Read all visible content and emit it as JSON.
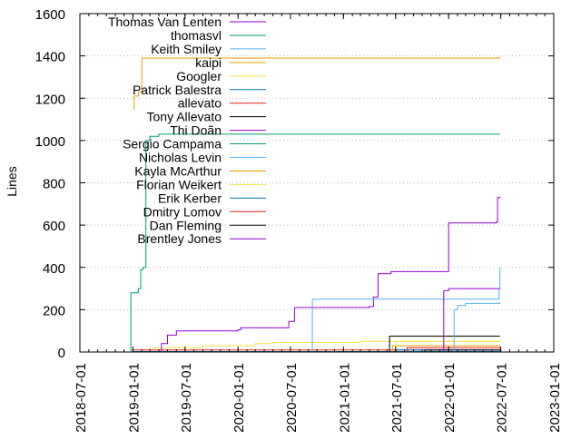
{
  "chart_data": {
    "type": "line",
    "title": "",
    "xlabel": "",
    "ylabel": "Lines",
    "xlim": [
      "2018-07-01",
      "2023-01-01"
    ],
    "ylim": [
      0,
      1600
    ],
    "y_ticks": [
      0,
      200,
      400,
      600,
      800,
      1000,
      1200,
      1400,
      1600
    ],
    "x_ticks": [
      "2018-07-01",
      "2019-01-01",
      "2019-07-01",
      "2020-01-01",
      "2020-07-01",
      "2021-01-01",
      "2021-07-01",
      "2022-01-01",
      "2022-07-01",
      "2023-01-01"
    ],
    "grid": "horizontal dotted lines at major y ticks",
    "legend_position": "top-left inside plot",
    "series": [
      {
        "name": "Thomas Van Lenten",
        "color": "#9400d3",
        "step": true,
        "points": []
      },
      {
        "name": "thomasvl",
        "color": "#009e73",
        "step": true,
        "points": [
          [
            "2018-12-22",
            0
          ],
          [
            "2018-12-25",
            280
          ],
          [
            "2019-01-10",
            280
          ],
          [
            "2019-01-20",
            300
          ],
          [
            "2019-01-28",
            390
          ],
          [
            "2019-02-05",
            400
          ],
          [
            "2019-02-15",
            1000
          ],
          [
            "2019-03-01",
            1020
          ],
          [
            "2019-04-01",
            1030
          ],
          [
            "2022-06-28",
            1030
          ]
        ]
      },
      {
        "name": "Keith Smiley",
        "color": "#56b4e9",
        "step": true,
        "points": []
      },
      {
        "name": "kaipi",
        "color": "#e69f00",
        "step": true,
        "points": [
          [
            "2019-01-02",
            1150
          ],
          [
            "2019-01-05",
            1210
          ],
          [
            "2019-01-20",
            1230
          ],
          [
            "2019-02-01",
            1390
          ],
          [
            "2022-06-28",
            1395
          ]
        ]
      },
      {
        "name": "Googler",
        "color": "#f0e442",
        "step": true,
        "points": [
          [
            "2019-01-01",
            0
          ],
          [
            "2019-03-01",
            20
          ],
          [
            "2019-09-01",
            30
          ],
          [
            "2020-03-01",
            40
          ],
          [
            "2020-05-01",
            45
          ],
          [
            "2021-03-01",
            50
          ],
          [
            "2022-06-28",
            55
          ]
        ]
      },
      {
        "name": "Patrick Balestra",
        "color": "#0072b2",
        "step": true,
        "points": [
          [
            "2019-01-01",
            2
          ],
          [
            "2022-06-28",
            2
          ]
        ]
      },
      {
        "name": "allevato",
        "color": "#e51e10",
        "step": true,
        "points": [
          [
            "2019-01-01",
            10
          ],
          [
            "2022-06-28",
            12
          ]
        ]
      },
      {
        "name": "Tony Allevato",
        "color": "#000000",
        "step": true,
        "points": [
          [
            "2021-06-01",
            0
          ],
          [
            "2021-06-10",
            75
          ],
          [
            "2022-06-28",
            75
          ]
        ]
      },
      {
        "name": "Thi Doãn",
        "color": "#9400d3",
        "step": true,
        "points": [
          [
            "2019-04-01",
            0
          ],
          [
            "2019-04-10",
            40
          ],
          [
            "2019-05-01",
            80
          ],
          [
            "2019-06-01",
            100
          ],
          [
            "2020-01-01",
            105
          ],
          [
            "2020-01-10",
            115
          ],
          [
            "2020-06-25",
            145
          ],
          [
            "2020-07-15",
            210
          ],
          [
            "2021-04-01",
            215
          ],
          [
            "2021-04-15",
            260
          ],
          [
            "2021-05-01",
            370
          ],
          [
            "2021-06-15",
            380
          ],
          [
            "2022-01-01",
            610
          ],
          [
            "2022-06-15",
            615
          ],
          [
            "2022-06-20",
            730
          ],
          [
            "2022-06-28",
            735
          ]
        ]
      },
      {
        "name": "Sergio Campama",
        "color": "#009e73",
        "step": true,
        "points": [
          [
            "2019-01-01",
            0
          ],
          [
            "2022-06-28",
            0
          ]
        ]
      },
      {
        "name": "Nicholas Levin",
        "color": "#56b4e9",
        "step": true,
        "points": [
          [
            "2020-09-01",
            0
          ],
          [
            "2020-09-15",
            250
          ],
          [
            "2022-06-20",
            250
          ],
          [
            "2022-06-25",
            300
          ],
          [
            "2022-06-28",
            400
          ]
        ]
      },
      {
        "name": "Kayla McArthur",
        "color": "#e69f00",
        "step": true,
        "points": [
          [
            "2021-06-01",
            0
          ],
          [
            "2021-06-20",
            30
          ],
          [
            "2022-06-28",
            30
          ]
        ]
      },
      {
        "name": "Florian Weikert",
        "color": "#f0e442",
        "step": true,
        "points": [
          [
            "2021-06-01",
            0
          ],
          [
            "2021-07-01",
            50
          ],
          [
            "2022-06-28",
            55
          ]
        ]
      },
      {
        "name": "Erik Kerber",
        "color": "#0072b2",
        "step": true,
        "points": [
          [
            "2021-06-01",
            0
          ],
          [
            "2021-07-01",
            10
          ],
          [
            "2022-06-28",
            12
          ]
        ]
      },
      {
        "name": "Dmitry Lomov",
        "color": "#e51e10",
        "step": true,
        "points": [
          [
            "2021-08-01",
            0
          ],
          [
            "2021-08-10",
            20
          ],
          [
            "2022-06-28",
            25
          ]
        ]
      },
      {
        "name": "Dan Fleming",
        "color": "#000000",
        "step": true,
        "points": [
          [
            "2021-10-01",
            0
          ],
          [
            "2021-10-10",
            10
          ],
          [
            "2022-06-28",
            12
          ]
        ]
      },
      {
        "name": "Brentley Jones",
        "color": "#9400d3",
        "step": true,
        "points": [
          [
            "2021-08-01",
            0
          ],
          [
            "2021-12-15",
            290
          ],
          [
            "2022-01-01",
            300
          ],
          [
            "2022-06-28",
            300
          ]
        ]
      },
      {
        "name": "",
        "color": "#56b4e9",
        "step": true,
        "points": [
          [
            "2022-01-15",
            0
          ],
          [
            "2022-01-20",
            200
          ],
          [
            "2022-02-01",
            220
          ],
          [
            "2022-03-01",
            230
          ],
          [
            "2022-06-28",
            235
          ]
        ]
      }
    ]
  }
}
